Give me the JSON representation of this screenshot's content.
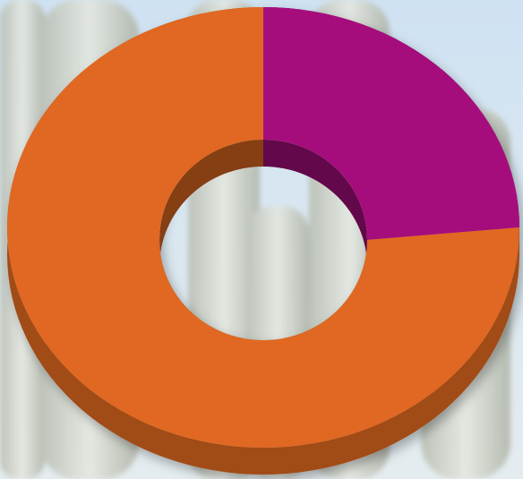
{
  "chart_data": {
    "type": "donut",
    "values": [
      25,
      75
    ],
    "colors": [
      "#a50e7c",
      "#e06820"
    ]
  }
}
